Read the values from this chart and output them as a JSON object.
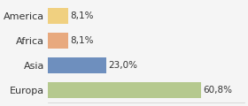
{
  "categories": [
    "Europa",
    "Asia",
    "Africa",
    "America"
  ],
  "values": [
    60.8,
    23.0,
    8.1,
    8.1
  ],
  "labels": [
    "60,8%",
    "23,0%",
    "8,1%",
    "8,1%"
  ],
  "bar_colors": [
    "#b5c98e",
    "#6e8fbe",
    "#e8a97e",
    "#f0d080"
  ],
  "background_color": "#f5f5f5",
  "figsize": [
    2.8,
    1.2
  ],
  "dpi": 100,
  "xlim": [
    0,
    78
  ]
}
